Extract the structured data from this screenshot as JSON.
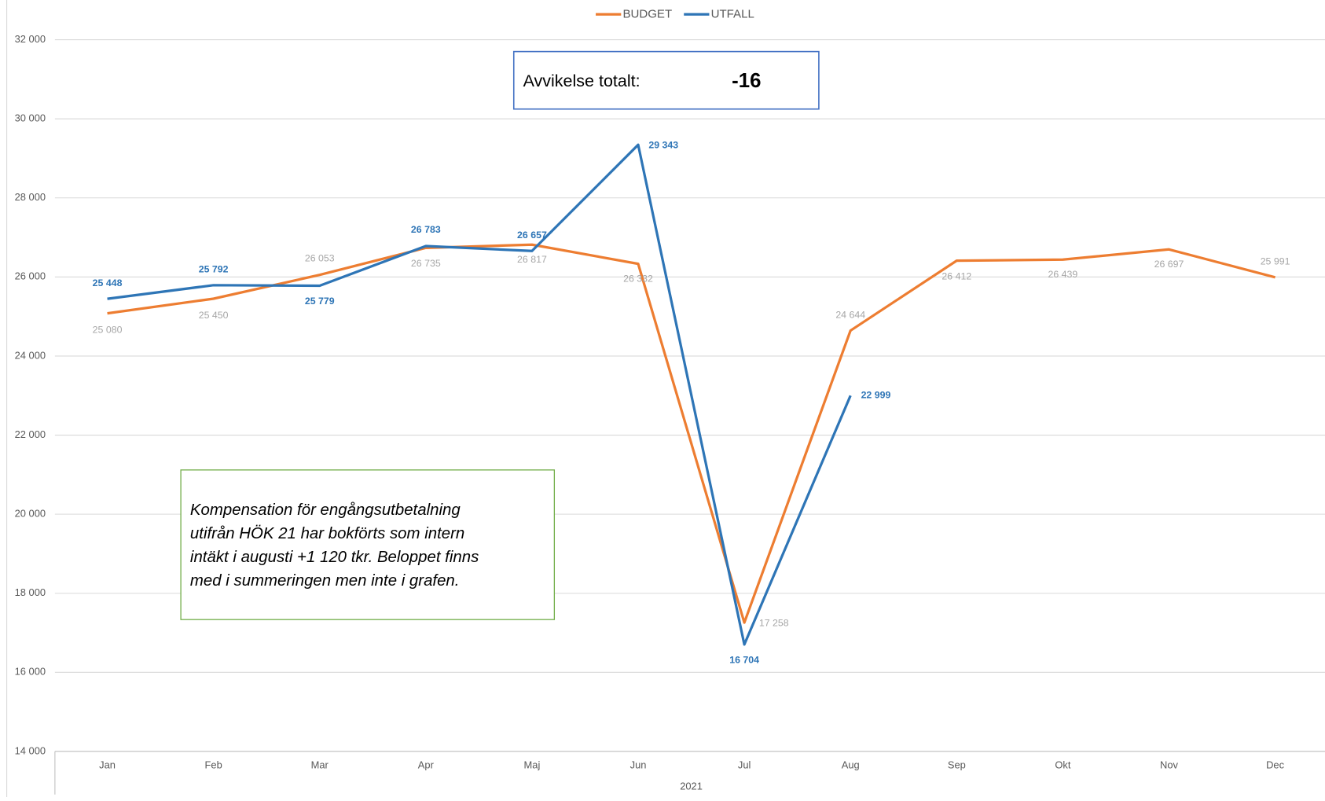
{
  "chart_data": {
    "type": "line",
    "categories": [
      "Jan",
      "Feb",
      "Mar",
      "Apr",
      "Maj",
      "Jun",
      "Jul",
      "Aug",
      "Sep",
      "Okt",
      "Nov",
      "Dec"
    ],
    "x_label": "2021",
    "series": [
      {
        "name": "BUDGET",
        "color": "#ed7d31",
        "values": [
          25080,
          25450,
          26053,
          26735,
          26817,
          26332,
          17258,
          24644,
          26412,
          26439,
          26697,
          25991
        ],
        "value_labels": [
          "25 080",
          "25 450",
          "26 053",
          "26 735",
          "26 817",
          "26 332",
          "17 258",
          "24 644",
          "26 412",
          "26 439",
          "26 697",
          "25 991"
        ]
      },
      {
        "name": "UTFALL",
        "color": "#2e75b6",
        "values": [
          25448,
          25792,
          25779,
          26783,
          26657,
          29343,
          16704,
          22999,
          null,
          null,
          null,
          null
        ],
        "value_labels": [
          "25 448",
          "25 792",
          "25 779",
          "26 783",
          "26 657",
          "29 343",
          "16 704",
          "22 999",
          null,
          null,
          null,
          null
        ]
      }
    ],
    "ylim": [
      14000,
      32000
    ],
    "yticks": [
      {
        "value": 14000,
        "label": "14 000"
      },
      {
        "value": 16000,
        "label": "16 000"
      },
      {
        "value": 18000,
        "label": "18 000"
      },
      {
        "value": 20000,
        "label": "20 000"
      },
      {
        "value": 22000,
        "label": "22 000"
      },
      {
        "value": 24000,
        "label": "24 000"
      },
      {
        "value": 26000,
        "label": "26 000"
      },
      {
        "value": 28000,
        "label": "28 000"
      },
      {
        "value": 30000,
        "label": "30 000"
      },
      {
        "value": 32000,
        "label": "32 000"
      }
    ],
    "grid": true,
    "legend_position": "top",
    "summary_box": {
      "label": "Avvikelse totalt:",
      "value": "-16"
    },
    "annotation": [
      "Kompensation för engångsutbetalning",
      "utifrån HÖK 21 har bokförts som intern",
      "intäkt i augusti +1 120 tkr. Beloppet finns",
      "med i summeringen men inte i grafen."
    ]
  }
}
